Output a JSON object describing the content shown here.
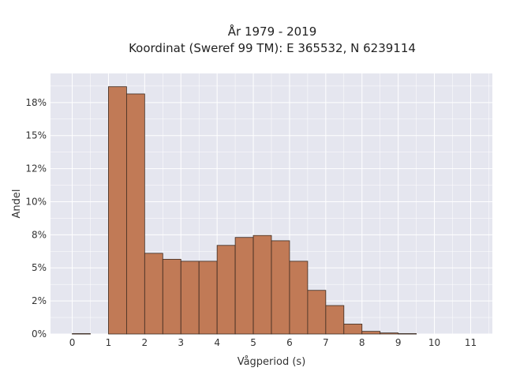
{
  "chart_data": {
    "type": "bar",
    "title": [
      "År 1979 - 2019",
      "Koordinat (Sweref 99 TM): E 365532, N 6239114"
    ],
    "xlabel": "Vågperiod (s)",
    "ylabel": "Andel",
    "x_ticks": [
      "0",
      "1",
      "2",
      "3",
      "4",
      "5",
      "6",
      "7",
      "8",
      "9",
      "10",
      "11"
    ],
    "y_ticks": [
      "0%",
      "2%",
      "5%",
      "8%",
      "10%",
      "12%",
      "15%",
      "18%"
    ],
    "y_tick_values": [
      0,
      0.025,
      0.05,
      0.075,
      0.1,
      0.125,
      0.15,
      0.175
    ],
    "xlim": [
      -0.6,
      11.6
    ],
    "ylim": [
      0,
      0.197
    ],
    "bin_width": 0.5,
    "bins": [
      {
        "x0": 0.0,
        "value": 0.0003
      },
      {
        "x0": 1.0,
        "value": 0.187
      },
      {
        "x0": 1.5,
        "value": 0.1815
      },
      {
        "x0": 2.0,
        "value": 0.061
      },
      {
        "x0": 2.5,
        "value": 0.0565
      },
      {
        "x0": 3.0,
        "value": 0.055
      },
      {
        "x0": 3.5,
        "value": 0.055
      },
      {
        "x0": 4.0,
        "value": 0.067
      },
      {
        "x0": 4.5,
        "value": 0.073
      },
      {
        "x0": 5.0,
        "value": 0.0745
      },
      {
        "x0": 5.5,
        "value": 0.0705
      },
      {
        "x0": 6.0,
        "value": 0.055
      },
      {
        "x0": 6.5,
        "value": 0.033
      },
      {
        "x0": 7.0,
        "value": 0.0215
      },
      {
        "x0": 7.5,
        "value": 0.0075
      },
      {
        "x0": 8.0,
        "value": 0.002
      },
      {
        "x0": 8.5,
        "value": 0.0008
      },
      {
        "x0": 9.0,
        "value": 0.0003
      }
    ],
    "grid": true,
    "colors": {
      "bar_fill": "#c17a56",
      "bar_edge": "#3b2a20",
      "plot_bg": "#e5e6ef",
      "grid": "#ffffff"
    }
  }
}
